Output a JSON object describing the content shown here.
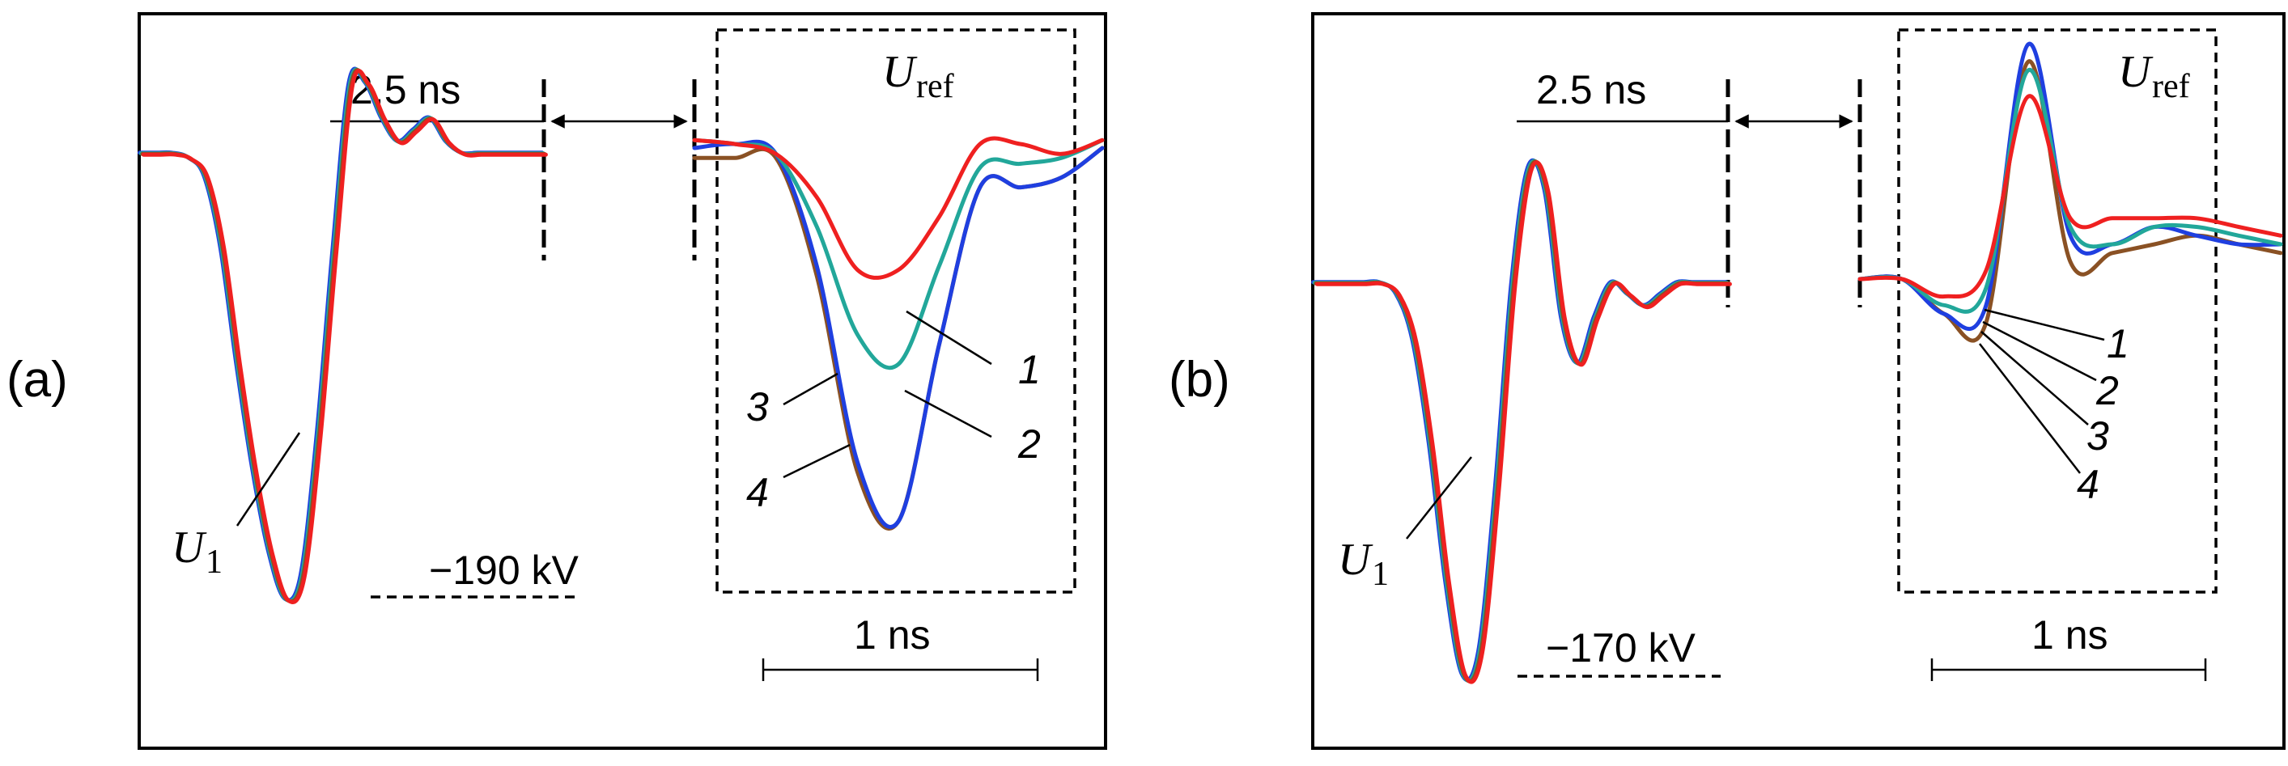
{
  "colors": {
    "trace_1": "#ef2020",
    "trace_2": "#22a79a",
    "trace_3": "#1f3fe0",
    "trace_4": "#8a5124"
  },
  "chart_data": [
    {
      "type": "line",
      "panel_label": "(a)",
      "delay_label": "2.5 ns",
      "scale_label": "1 ns",
      "peak_label": "−190 kV",
      "incident_wave": {
        "symbol": "U",
        "subscript": "1"
      },
      "reflected_wave": {
        "symbol": "U",
        "subscript": "ref"
      },
      "curve_labels": [
        "1",
        "2",
        "3",
        "4"
      ],
      "incident": {
        "x": [
          0,
          4,
          8,
          12,
          16,
          20,
          24,
          28,
          32,
          36,
          40,
          44,
          48,
          52,
          56,
          60,
          64,
          68,
          72,
          76,
          80,
          84,
          88,
          92,
          96,
          100
        ],
        "y": [
          0,
          0,
          0,
          -2,
          -10,
          -40,
          -90,
          -135,
          -170,
          -190,
          -180,
          -120,
          -40,
          30,
          30,
          15,
          5,
          10,
          15,
          5,
          0,
          0,
          0,
          0,
          0,
          0
        ]
      },
      "reflected_series": [
        {
          "name": "1",
          "x": [
            0,
            10,
            20,
            30,
            40,
            50,
            60,
            70,
            80,
            90,
            100
          ],
          "y": [
            4,
            2,
            -3,
            -25,
            -62,
            -62,
            -35,
            2,
            2,
            -3,
            4
          ]
        },
        {
          "name": "2",
          "x": [
            0,
            10,
            20,
            30,
            40,
            50,
            60,
            70,
            80,
            90,
            100
          ],
          "y": [
            4,
            2,
            -3,
            -40,
            -95,
            -110,
            -60,
            -10,
            -8,
            -5,
            4
          ]
        },
        {
          "name": "3",
          "x": [
            0,
            10,
            20,
            30,
            40,
            50,
            60,
            70,
            80,
            90,
            100
          ],
          "y": [
            0,
            2,
            -3,
            -60,
            -160,
            -190,
            -100,
            -20,
            -20,
            -15,
            0
          ]
        },
        {
          "name": "4",
          "x": [
            0,
            10,
            20,
            30,
            40,
            50,
            60,
            70,
            80,
            90,
            100
          ],
          "y": [
            -5,
            -5,
            -5,
            -65,
            -165,
            -190,
            -100,
            -20,
            -20,
            -15,
            0
          ]
        }
      ]
    },
    {
      "type": "line",
      "panel_label": "(b)",
      "delay_label": "2.5 ns",
      "scale_label": "1 ns",
      "peak_label": "−170 kV",
      "incident_wave": {
        "symbol": "U",
        "subscript": "1"
      },
      "reflected_wave": {
        "symbol": "U",
        "subscript": "ref"
      },
      "curve_labels": [
        "1",
        "2",
        "3",
        "4"
      ],
      "incident": {
        "x": [
          0,
          4,
          8,
          12,
          16,
          20,
          24,
          28,
          32,
          36,
          40,
          44,
          48,
          52,
          56,
          60,
          64,
          68,
          72,
          76,
          80,
          84,
          88,
          92,
          96,
          100
        ],
        "y": [
          0,
          0,
          0,
          0,
          0,
          -5,
          -25,
          -70,
          -130,
          -170,
          -160,
          -90,
          0,
          50,
          40,
          -15,
          -35,
          -15,
          0,
          -5,
          -10,
          -5,
          0,
          0,
          0,
          0
        ]
      },
      "reflected_series": [
        {
          "name": "1",
          "x": [
            0,
            10,
            20,
            30,
            40,
            50,
            60,
            70,
            80,
            90,
            100
          ],
          "y": [
            0,
            0,
            -10,
            5,
            105,
            35,
            35,
            35,
            35,
            30,
            25
          ]
        },
        {
          "name": "2",
          "x": [
            0,
            10,
            20,
            30,
            40,
            50,
            60,
            70,
            80,
            90,
            100
          ],
          "y": [
            0,
            0,
            -15,
            -5,
            120,
            30,
            20,
            30,
            30,
            25,
            20
          ]
        },
        {
          "name": "3",
          "x": [
            0,
            10,
            20,
            30,
            40,
            50,
            60,
            70,
            80,
            90,
            100
          ],
          "y": [
            0,
            0,
            -20,
            -15,
            135,
            25,
            20,
            30,
            25,
            20,
            20
          ]
        },
        {
          "name": "4",
          "x": [
            0,
            10,
            20,
            30,
            40,
            50,
            60,
            70,
            80,
            90,
            100
          ],
          "y": [
            0,
            0,
            -20,
            -25,
            125,
            10,
            15,
            20,
            25,
            20,
            15
          ]
        }
      ]
    }
  ]
}
